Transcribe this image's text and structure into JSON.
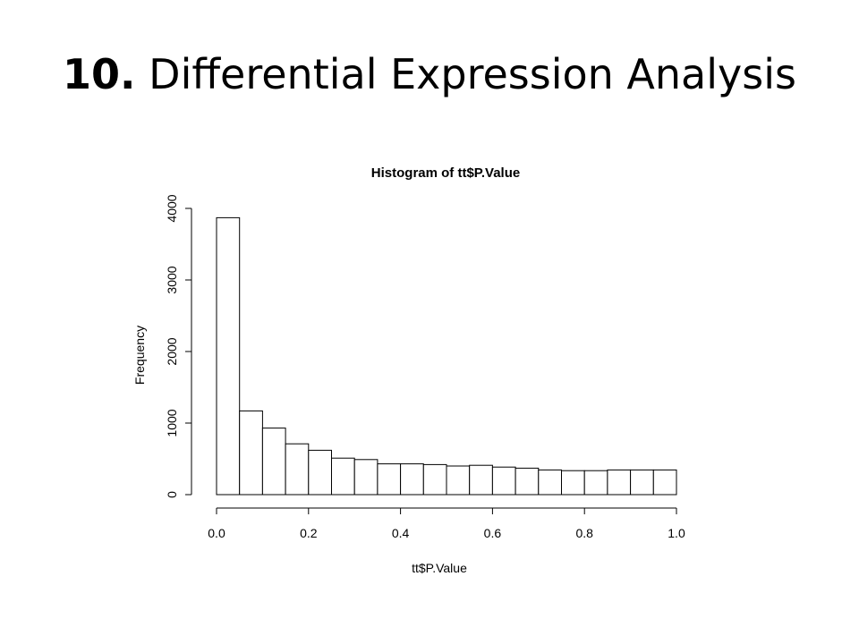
{
  "slide": {
    "title_number": "10.",
    "title_text": "Differential Expression Analysis"
  },
  "chart_data": {
    "type": "bar",
    "title": "Histogram of tt$P.Value",
    "xlabel": "tt$P.Value",
    "ylabel": "Frequency",
    "bin_edges": [
      0.0,
      0.05,
      0.1,
      0.15,
      0.2,
      0.25,
      0.3,
      0.35,
      0.4,
      0.45,
      0.5,
      0.55,
      0.6,
      0.65,
      0.7,
      0.75,
      0.8,
      0.85,
      0.9,
      0.95,
      1.0
    ],
    "values": [
      3870,
      1170,
      930,
      710,
      620,
      510,
      490,
      430,
      430,
      420,
      400,
      410,
      385,
      370,
      345,
      335,
      335,
      345,
      345,
      345
    ],
    "xlim": [
      0,
      1
    ],
    "ylim": [
      0,
      4000
    ],
    "x_ticks": [
      0.0,
      0.2,
      0.4,
      0.6,
      0.8,
      1.0
    ],
    "x_tick_labels": [
      "0.0",
      "0.2",
      "0.4",
      "0.6",
      "0.8",
      "1.0"
    ],
    "y_ticks": [
      0,
      1000,
      2000,
      3000,
      4000
    ],
    "y_tick_labels": [
      "0",
      "1000",
      "2000",
      "3000",
      "4000"
    ],
    "bar_fill": "#ffffff",
    "bar_stroke": "#000000",
    "grid": false
  }
}
